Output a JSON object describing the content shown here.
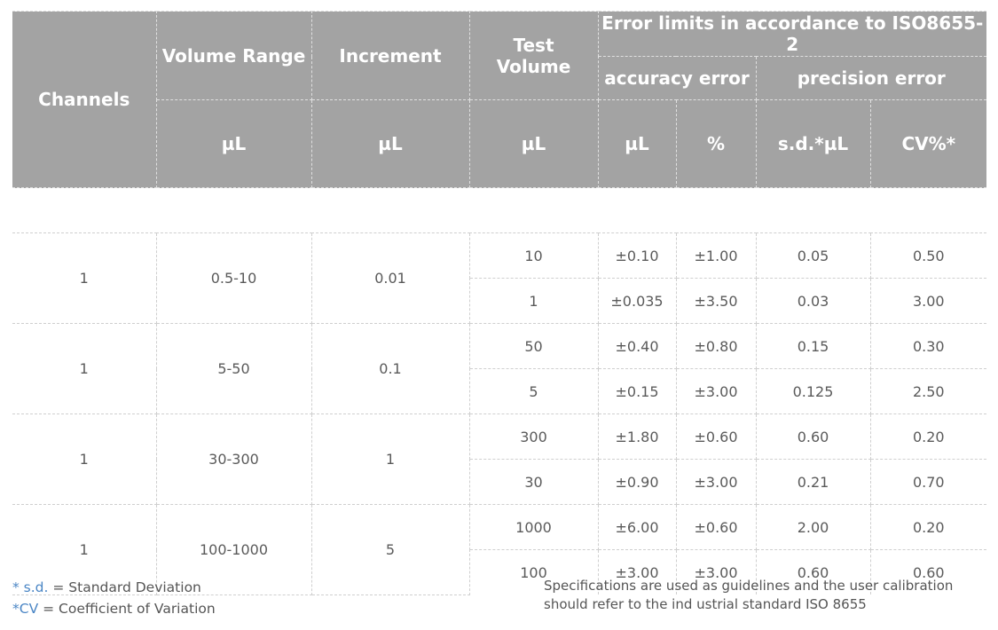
{
  "header": {
    "channels": "Channels",
    "volume_range": "Volume Range",
    "increment": "Increment",
    "test_volume": "Test Volume",
    "error_limits": "Error limits in accordance to ISO8655-2",
    "accuracy_error": "accuracy error",
    "precision_error": "precision error",
    "unit_volume_range": "µL",
    "unit_increment": "µL",
    "unit_test_volume": "µL",
    "unit_accuracy_ul": "µL",
    "unit_accuracy_pct": "%",
    "unit_sd": "s.d.*µL",
    "unit_cv": "CV%*"
  },
  "groups": [
    {
      "channels": "1",
      "volume_range": "0.5-10",
      "increment": "0.01",
      "rows": [
        {
          "test_volume": "10",
          "acc_ul": "±0.10",
          "acc_pct": "±1.00",
          "sd": "0.05",
          "cv": "0.50"
        },
        {
          "test_volume": "1",
          "acc_ul": "±0.035",
          "acc_pct": "±3.50",
          "sd": "0.03",
          "cv": "3.00"
        }
      ]
    },
    {
      "channels": "1",
      "volume_range": "5-50",
      "increment": "0.1",
      "rows": [
        {
          "test_volume": "50",
          "acc_ul": "±0.40",
          "acc_pct": "±0.80",
          "sd": "0.15",
          "cv": "0.30"
        },
        {
          "test_volume": "5",
          "acc_ul": "±0.15",
          "acc_pct": "±3.00",
          "sd": "0.125",
          "cv": "2.50"
        }
      ]
    },
    {
      "channels": "1",
      "volume_range": "30-300",
      "increment": "1",
      "rows": [
        {
          "test_volume": "300",
          "acc_ul": "±1.80",
          "acc_pct": "±0.60",
          "sd": "0.60",
          "cv": "0.20"
        },
        {
          "test_volume": "30",
          "acc_ul": "±0.90",
          "acc_pct": "±3.00",
          "sd": "0.21",
          "cv": "0.70"
        }
      ]
    },
    {
      "channels": "1",
      "volume_range": "100-1000",
      "increment": "5",
      "rows": [
        {
          "test_volume": "1000",
          "acc_ul": "±6.00",
          "acc_pct": "±0.60",
          "sd": "2.00",
          "cv": "0.20"
        },
        {
          "test_volume": "100",
          "acc_ul": "±3.00",
          "acc_pct": "±3.00",
          "sd": "0.60",
          "cv": "0.60"
        }
      ]
    }
  ],
  "footnotes": {
    "sd_star": "* s.d.",
    "sd_text": " = Standard Deviation",
    "cv_star": "*CV",
    "cv_text": " = Coefficient of Variation",
    "note": "Specifications are used as guidelines and the user calibration should refer to the ind ustrial standard ISO 8655"
  }
}
